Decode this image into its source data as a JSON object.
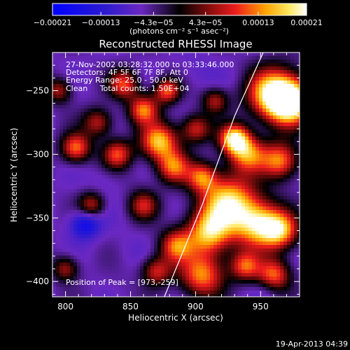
{
  "colorbar": {
    "ticks": [
      "-0.00021",
      "-0.00013",
      "-4.3e-05",
      "4.3e-05",
      "0.00013",
      "0.00021"
    ],
    "tick_values": [
      -0.00021,
      -0.00013,
      -4.3e-05,
      4.3e-05,
      0.00013,
      0.00021
    ],
    "range": [
      -0.00021,
      0.00021
    ],
    "units": "(photons cm⁻² s⁻¹ asec⁻²)"
  },
  "plot": {
    "title": "Reconstructed RHESSI Image",
    "info_lines": [
      "27-Nov-2002 03:28:32.000 to 03:33:46.000",
      "Detectors: 4F 5F 6F 7F 8F, Att 0",
      "Energy Range: 25.0 - 50.0 keV",
      "Clean     Total counts: 1.50E+04"
    ],
    "peak_text": "Position of Peak = [973,-259]",
    "footer": "19-Apr-2013 04:39"
  },
  "chart_data": {
    "type": "heatmap",
    "title": "Reconstructed RHESSI Image",
    "xlabel": "Heliocentric X (arcsec)",
    "ylabel": "Heliocentric Y (arcsec)",
    "xlim": [
      790,
      980
    ],
    "ylim": [
      -412,
      -220
    ],
    "x_ticks": [
      800,
      850,
      900,
      950
    ],
    "y_ticks": [
      -250,
      -300,
      -350,
      -400
    ],
    "peak": [
      973,
      -259
    ],
    "limb_points": [
      [
        876,
        -412
      ],
      [
        905,
        -340
      ],
      [
        930,
        -270
      ],
      [
        952,
        -220
      ]
    ],
    "blobs": [
      {
        "x": 973,
        "y": -259,
        "v": 0.00021,
        "r": 12
      },
      {
        "x": 960,
        "y": -252,
        "v": 0.00018,
        "r": 14
      },
      {
        "x": 930,
        "y": -288,
        "v": 0.00019,
        "r": 8
      },
      {
        "x": 940,
        "y": -300,
        "v": 0.00012,
        "r": 10
      },
      {
        "x": 965,
        "y": -305,
        "v": 0.00013,
        "r": 10
      },
      {
        "x": 925,
        "y": -338,
        "v": 0.00018,
        "r": 15
      },
      {
        "x": 948,
        "y": -355,
        "v": 0.00016,
        "r": 13
      },
      {
        "x": 910,
        "y": -362,
        "v": 0.00015,
        "r": 12
      },
      {
        "x": 905,
        "y": -395,
        "v": 0.00013,
        "r": 12
      },
      {
        "x": 885,
        "y": -372,
        "v": 0.00011,
        "r": 9
      },
      {
        "x": 965,
        "y": -360,
        "v": 0.00013,
        "r": 10
      },
      {
        "x": 960,
        "y": -395,
        "v": 0.00012,
        "r": 9
      },
      {
        "x": 938,
        "y": -388,
        "v": 0.0001,
        "r": 8
      },
      {
        "x": 845,
        "y": -245,
        "v": 0.0001,
        "r": 8
      },
      {
        "x": 860,
        "y": -265,
        "v": 0.00012,
        "r": 8
      },
      {
        "x": 878,
        "y": -250,
        "v": 0.00011,
        "r": 7
      },
      {
        "x": 872,
        "y": -290,
        "v": 0.00016,
        "r": 10
      },
      {
        "x": 883,
        "y": -310,
        "v": 0.00011,
        "r": 9
      },
      {
        "x": 905,
        "y": -318,
        "v": 0.0001,
        "r": 8
      },
      {
        "x": 825,
        "y": -275,
        "v": 7e-05,
        "r": 8
      },
      {
        "x": 808,
        "y": -295,
        "v": 0.00012,
        "r": 8
      },
      {
        "x": 840,
        "y": -300,
        "v": 0.0001,
        "r": 8
      },
      {
        "x": 820,
        "y": -340,
        "v": 7e-05,
        "r": 7
      },
      {
        "x": 860,
        "y": -340,
        "v": 7e-05,
        "r": 8
      },
      {
        "x": 870,
        "y": -392,
        "v": 8e-05,
        "r": 8
      },
      {
        "x": 800,
        "y": -390,
        "v": 6e-05,
        "r": 7
      },
      {
        "x": 915,
        "y": -258,
        "v": 6e-05,
        "r": 7
      },
      {
        "x": 900,
        "y": -280,
        "v": 8e-05,
        "r": 8
      },
      {
        "x": 795,
        "y": -250,
        "v": 6e-05,
        "r": 7
      },
      {
        "x": 815,
        "y": -355,
        "v": -0.00018,
        "r": 8
      },
      {
        "x": 830,
        "y": -320,
        "v": -8e-05,
        "r": 8
      },
      {
        "x": 800,
        "y": -325,
        "v": -6e-05,
        "r": 8
      },
      {
        "x": 850,
        "y": -375,
        "v": -7e-05,
        "r": 9
      },
      {
        "x": 900,
        "y": -235,
        "v": -8e-05,
        "r": 10
      },
      {
        "x": 935,
        "y": -240,
        "v": -7e-05,
        "r": 7
      },
      {
        "x": 955,
        "y": -405,
        "v": -9e-05,
        "r": 7
      },
      {
        "x": 925,
        "y": -408,
        "v": -6e-05,
        "r": 7
      },
      {
        "x": 855,
        "y": -320,
        "v": -5e-05,
        "r": 7
      },
      {
        "x": 840,
        "y": -405,
        "v": -5e-05,
        "r": 8
      }
    ]
  }
}
